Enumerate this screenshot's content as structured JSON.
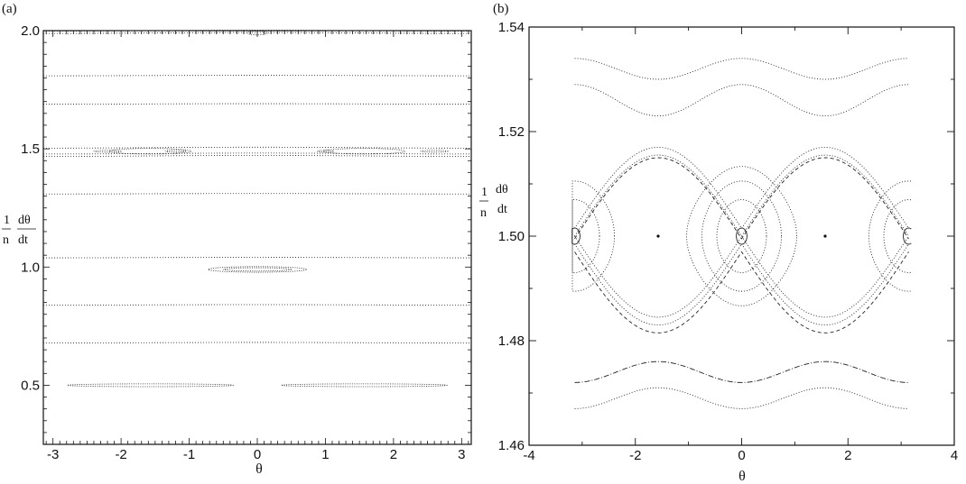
{
  "chart_data": [
    {
      "panel_label": "(a)",
      "type": "scatter",
      "xlabel": "θ",
      "ylabel_num": "1",
      "ylabel_den": "n",
      "ylabel_d_num": "dθ",
      "ylabel_d_den": "dt",
      "xlim": [
        -3.14159,
        3.14159
      ],
      "ylim": [
        0.25,
        2.0
      ],
      "xticks": [
        -3,
        -2,
        -1,
        0,
        1,
        2,
        3
      ],
      "yticks": [
        0.5,
        1.0,
        1.5,
        2.0
      ],
      "ytick_labels": [
        "0.5",
        "1.0",
        "1.5",
        "2.0"
      ],
      "style": "dotted",
      "rotational_orbits": [
        {
          "y0": 2.0,
          "amp": 0.002
        },
        {
          "y0": 1.99,
          "amp": 0.002
        },
        {
          "y0": 1.81,
          "amp": 0.001
        },
        {
          "y0": 1.69,
          "amp": 0.001
        },
        {
          "y0": 1.505,
          "amp": 0.002
        },
        {
          "y0": 1.48,
          "amp": 0.002
        },
        {
          "y0": 1.47,
          "amp": 0.002
        },
        {
          "y0": 1.31,
          "amp": 0.001
        },
        {
          "y0": 1.04,
          "amp": 0.001
        },
        {
          "y0": 0.84,
          "amp": 0.001
        },
        {
          "y0": 0.68,
          "amp": 0.001
        }
      ],
      "islands": [
        {
          "cx": 0.0,
          "cy": 1.99,
          "rx": 0.15,
          "ry": 0.008
        },
        {
          "cx": -1.57,
          "cy": 1.49,
          "rx": 0.6,
          "ry": 0.012
        },
        {
          "cx": 1.57,
          "cy": 1.49,
          "rx": 0.6,
          "ry": 0.012
        },
        {
          "cx": -1.2,
          "cy": 1.49,
          "rx": 0.15,
          "ry": 0.004
        },
        {
          "cx": 1.0,
          "cy": 1.49,
          "rx": 0.12,
          "ry": 0.004
        },
        {
          "cx": -2.2,
          "cy": 1.49,
          "rx": 0.2,
          "ry": 0.004
        },
        {
          "cx": 2.6,
          "cy": 1.49,
          "rx": 0.2,
          "ry": 0.004
        },
        {
          "cx": 0.0,
          "cy": 0.99,
          "rx": 0.72,
          "ry": 0.012
        },
        {
          "cx": 0.0,
          "cy": 0.99,
          "rx": 0.5,
          "ry": 0.007
        },
        {
          "cx": -1.57,
          "cy": 0.5,
          "rx": 1.22,
          "ry": 0.006
        },
        {
          "cx": 1.57,
          "cy": 0.5,
          "rx": 1.22,
          "ry": 0.006
        }
      ]
    },
    {
      "panel_label": "(b)",
      "type": "scatter",
      "xlabel": "θ",
      "ylabel_num": "1",
      "ylabel_den": "n",
      "ylabel_d_num": "dθ",
      "ylabel_d_den": "dt",
      "xlim": [
        -4,
        4
      ],
      "ylim": [
        1.46,
        1.54
      ],
      "xticks": [
        -4,
        -2,
        0,
        2,
        4
      ],
      "yticks": [
        1.46,
        1.48,
        1.5,
        1.52,
        1.54
      ],
      "ytick_labels": [
        "1.46",
        "1.48",
        "1.50",
        "1.52",
        "1.54"
      ],
      "xtick_labels": [
        "-4",
        "-2",
        "0",
        "2",
        "4"
      ],
      "style": "dotted",
      "separatrix": {
        "center": 1.5,
        "half_width": 0.0155,
        "x_points": [
          -1.5708,
          1.5708
        ]
      },
      "rotational_orbits": [
        {
          "y0": 1.532,
          "amp": 0.002,
          "style": "dotted"
        },
        {
          "y0": 1.526,
          "amp": 0.003,
          "style": "dotted"
        },
        {
          "y0": 1.474,
          "amp": -0.002,
          "style": "dashdot"
        },
        {
          "y0": 1.469,
          "amp": -0.002,
          "style": "dotted"
        }
      ],
      "separatrix_neighbors": [
        {
          "side": "upper",
          "offset": 0.0015,
          "style": "dotted"
        },
        {
          "side": "upper",
          "offset": -0.0005,
          "style": "dashed"
        },
        {
          "side": "lower",
          "offset": 0.0015,
          "style": "dotted"
        },
        {
          "side": "lower",
          "offset": 0.003,
          "style": "dashed"
        }
      ],
      "librations": [
        {
          "cx": 0,
          "fraction": 0.1
        },
        {
          "cx": 0,
          "fraction": 0.45
        },
        {
          "cx": 0,
          "fraction": 0.68
        },
        {
          "cx": 0,
          "fraction": 0.86
        },
        {
          "cx": -3.14159,
          "fraction": 0.1
        },
        {
          "cx": -3.14159,
          "fraction": 0.45
        },
        {
          "cx": -3.14159,
          "fraction": 0.68
        },
        {
          "cx": 3.14159,
          "fraction": 0.1
        },
        {
          "cx": 3.14159,
          "fraction": 0.45
        },
        {
          "cx": 3.14159,
          "fraction": 0.68
        }
      ]
    }
  ]
}
